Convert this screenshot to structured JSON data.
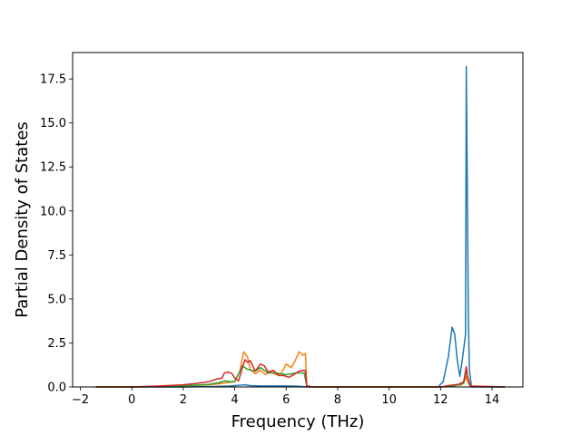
{
  "chart_data": {
    "type": "line",
    "xlabel": "Frequency (THz)",
    "ylabel": "Partial Density of States",
    "xlim": [
      -2.3,
      15.2
    ],
    "ylim": [
      0,
      19.0
    ],
    "xticks": [
      -2,
      0,
      2,
      4,
      6,
      8,
      10,
      12,
      14
    ],
    "yticks": [
      0.0,
      2.5,
      5.0,
      7.5,
      10.0,
      12.5,
      15.0,
      17.5
    ],
    "xtick_labels": [
      "−2",
      "0",
      "2",
      "4",
      "6",
      "8",
      "10",
      "12",
      "14"
    ],
    "ytick_labels": [
      "0.0",
      "2.5",
      "5.0",
      "7.5",
      "10.0",
      "12.5",
      "15.0",
      "17.5"
    ],
    "grid": false,
    "legend": "none",
    "series": [
      {
        "color": "#1f77b4",
        "x": [
          -1.4,
          0,
          2,
          3,
          3.8,
          4.2,
          4.4,
          4.6,
          5.0,
          5.5,
          6.0,
          6.5,
          6.8,
          7.0,
          8,
          10,
          11.9,
          12.1,
          12.3,
          12.45,
          12.55,
          12.65,
          12.75,
          12.85,
          12.92,
          12.97,
          13.0,
          13.03,
          13.08,
          13.12,
          13.2,
          14.5
        ],
        "y": [
          0,
          0,
          0,
          0.02,
          0.05,
          0.1,
          0.12,
          0.08,
          0.06,
          0.06,
          0.06,
          0.04,
          0,
          0,
          0,
          0,
          0,
          0.3,
          1.7,
          3.4,
          3.0,
          1.5,
          0.6,
          1.6,
          2.4,
          3.0,
          18.2,
          13.0,
          4.0,
          1.0,
          0,
          0
        ]
      },
      {
        "color": "#ff7f0e",
        "x": [
          -1.4,
          0,
          1.0,
          2.0,
          2.5,
          3.0,
          3.4,
          3.7,
          4.0,
          4.2,
          4.35,
          4.5,
          4.6,
          4.8,
          5.0,
          5.2,
          5.4,
          5.6,
          5.8,
          6.0,
          6.2,
          6.35,
          6.5,
          6.65,
          6.75,
          6.8,
          7.0,
          8,
          10,
          12,
          12.4,
          12.6,
          12.8,
          12.95,
          13.0,
          13.05,
          13.15,
          14.5
        ],
        "y": [
          0,
          0,
          0.02,
          0.06,
          0.09,
          0.12,
          0.18,
          0.25,
          0.3,
          0.9,
          2.0,
          1.7,
          1.0,
          0.75,
          0.95,
          0.7,
          0.9,
          0.7,
          0.75,
          1.3,
          1.1,
          1.5,
          2.0,
          1.8,
          1.9,
          0.1,
          0,
          0,
          0,
          0,
          0.08,
          0.12,
          0.1,
          0.4,
          0.6,
          0.3,
          0.05,
          0
        ]
      },
      {
        "color": "#2ca02c",
        "x": [
          -1.4,
          0,
          1.5,
          2.5,
          3.0,
          3.4,
          3.6,
          3.8,
          4.0,
          4.3,
          4.5,
          4.8,
          5.0,
          5.3,
          5.6,
          6.0,
          6.4,
          6.7,
          6.8,
          7.0,
          12,
          12.5,
          12.9,
          13.0,
          13.1,
          13.2,
          14.5
        ],
        "y": [
          0,
          0,
          0.03,
          0.1,
          0.15,
          0.25,
          0.35,
          0.3,
          0.3,
          1.2,
          1.0,
          0.9,
          1.1,
          0.8,
          0.8,
          0.7,
          0.8,
          0.8,
          0.05,
          0,
          0,
          0.05,
          0.2,
          0.9,
          0.3,
          0.02,
          0
        ]
      },
      {
        "color": "#d62728",
        "x": [
          -1.4,
          0,
          1.0,
          2.0,
          2.5,
          3.0,
          3.3,
          3.5,
          3.6,
          3.75,
          3.9,
          4.0,
          4.15,
          4.3,
          4.4,
          4.5,
          4.6,
          4.8,
          5.0,
          5.15,
          5.3,
          5.5,
          5.7,
          5.9,
          6.1,
          6.3,
          6.5,
          6.7,
          6.75,
          6.8,
          7.0,
          10,
          12,
          12.4,
          12.7,
          12.9,
          13.0,
          13.05,
          13.15,
          14.5
        ],
        "y": [
          0,
          0,
          0.05,
          0.12,
          0.2,
          0.3,
          0.45,
          0.5,
          0.8,
          0.85,
          0.75,
          0.5,
          0.35,
          1.1,
          1.55,
          1.4,
          1.5,
          0.9,
          1.3,
          1.2,
          0.85,
          0.95,
          0.65,
          0.65,
          0.55,
          0.7,
          0.9,
          0.95,
          0.9,
          0.05,
          0,
          0,
          0,
          0.1,
          0.15,
          0.3,
          1.15,
          0.6,
          0.05,
          0
        ]
      }
    ]
  }
}
